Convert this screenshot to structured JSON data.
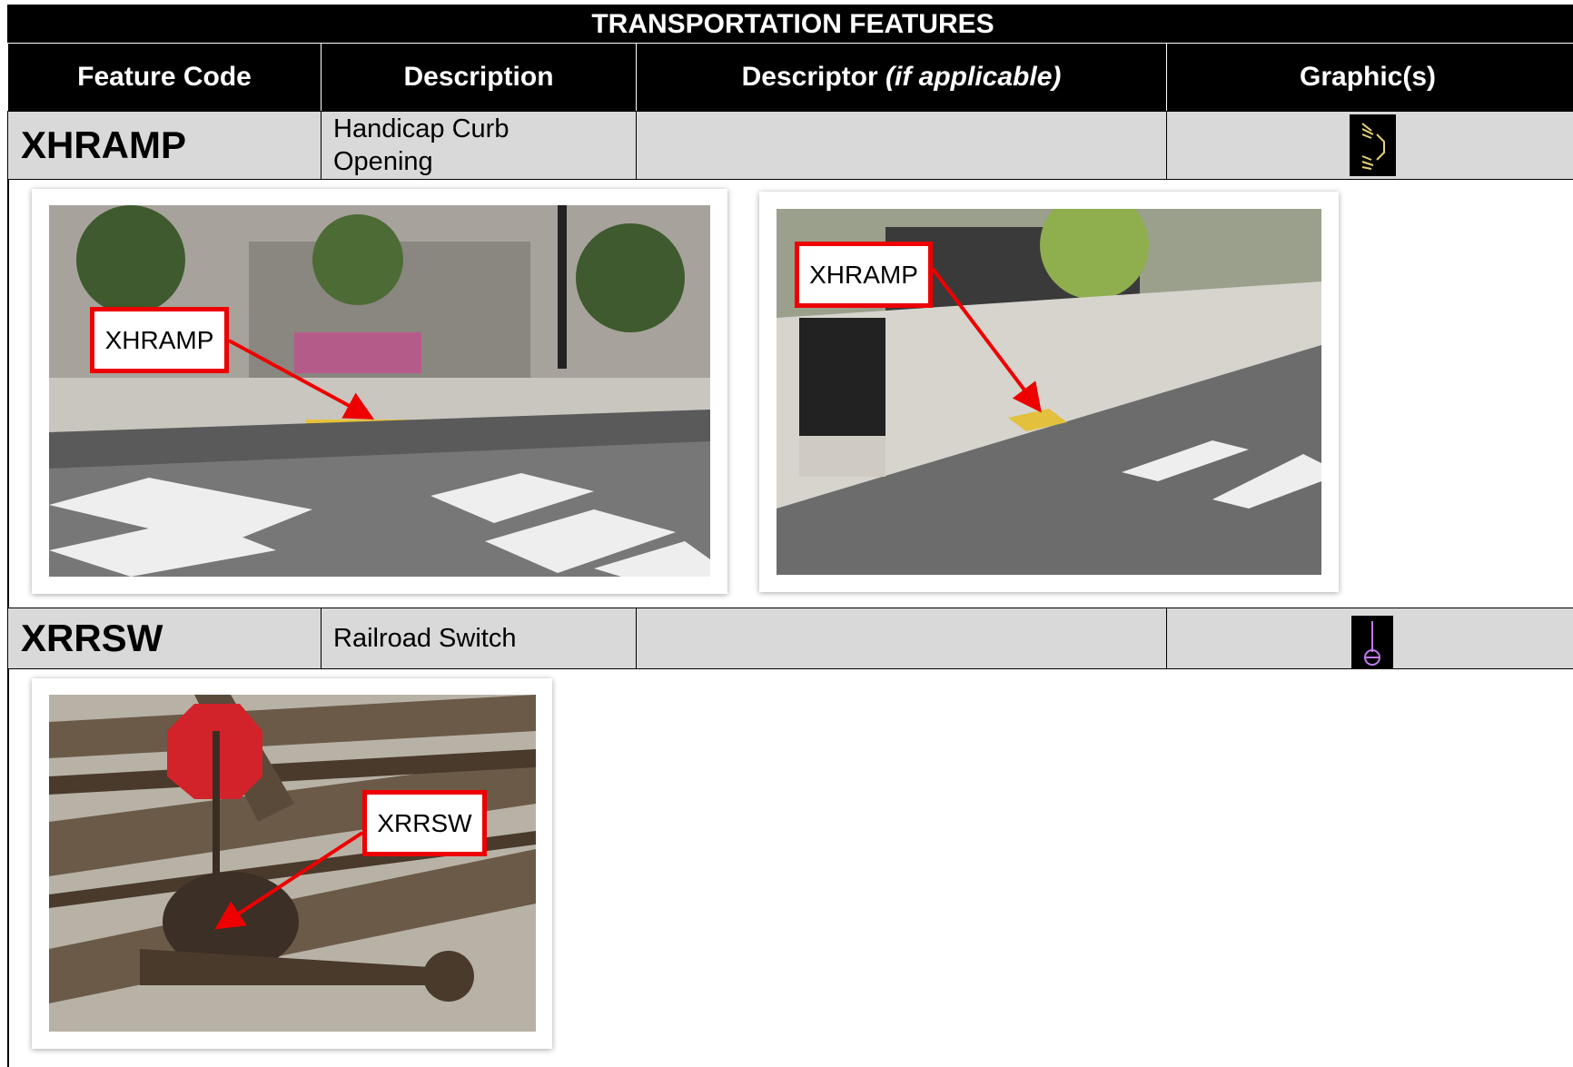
{
  "table": {
    "title": "TRANSPORTATION FEATURES",
    "headers": [
      "Feature Code",
      "Description",
      {
        "text": "Descriptor",
        "qualifier": "(if applicable)"
      },
      "Graphic(s)"
    ],
    "rows": [
      {
        "code": "XHRAMP",
        "description": "Handicap Curb Opening",
        "photo_labels": [
          "XHRAMP",
          "XHRAMP"
        ]
      },
      {
        "code": "XRRSW",
        "description": "Railroad Switch",
        "photo_labels": [
          "XRRSW"
        ]
      }
    ]
  }
}
